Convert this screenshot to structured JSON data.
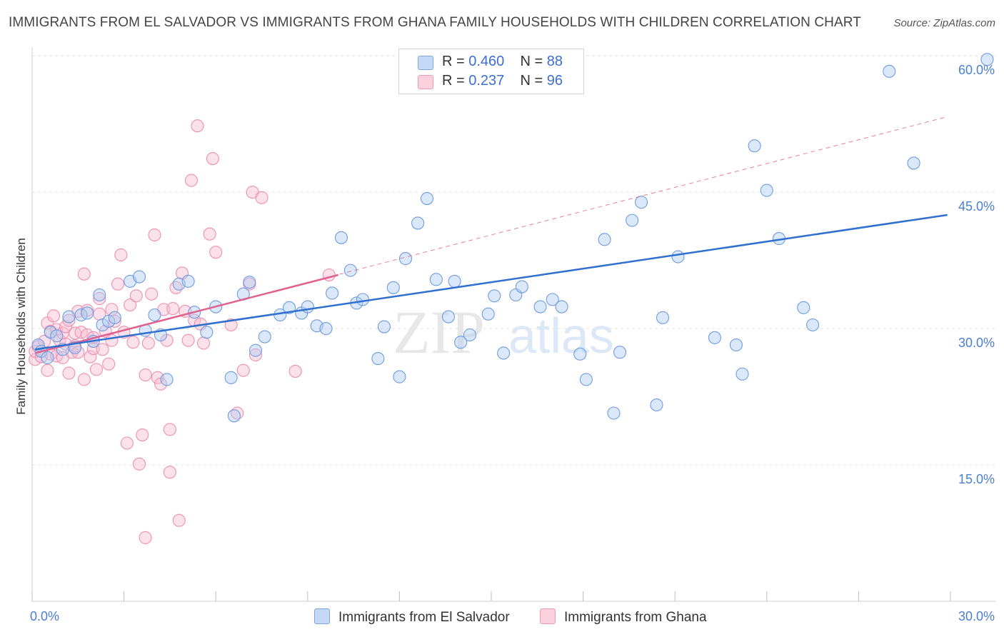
{
  "title": "IMMIGRANTS FROM EL SALVADOR VS IMMIGRANTS FROM GHANA FAMILY HOUSEHOLDS WITH CHILDREN CORRELATION CHART",
  "source": "Source: ZipAtlas.com",
  "watermark": {
    "zip": "ZIP",
    "atlas": "atlas"
  },
  "legend": {
    "rows": [
      {
        "r_label": "R =",
        "r_value": "0.460",
        "n_label": "N =",
        "n_value": "88"
      },
      {
        "r_label": "R =",
        "r_value": "0.237",
        "n_label": "N =",
        "n_value": "96"
      }
    ]
  },
  "colors": {
    "blue": "#4a7fd1",
    "blue_fill": "#aecbf2",
    "blue_line": "#2f6fd0",
    "pink": "#e0608e",
    "pink_fill": "#f7bdd0",
    "pink_line": "#e0608e"
  },
  "chart_data": {
    "type": "scatter",
    "title": "IMMIGRANTS FROM EL SALVADOR VS IMMIGRANTS FROM GHANA FAMILY HOUSEHOLDS WITH CHILDREN CORRELATION CHART",
    "xlabel": "",
    "ylabel": "Family Households with Children",
    "xlim": [
      0,
      30
    ],
    "ylim": [
      0,
      60
    ],
    "x_tick_labels": [
      "0.0%",
      "30.0%"
    ],
    "y_tick_labels": [
      "15.0%",
      "30.0%",
      "45.0%",
      "60.0%"
    ],
    "y_ticks": [
      15,
      30,
      45,
      60
    ],
    "grid": true,
    "series": [
      {
        "name": "Immigrants from El Salvador",
        "color": "blue",
        "trend": {
          "x": [
            0.1,
            29.9
          ],
          "y": [
            27.7,
            42.5
          ]
        },
        "points": [
          [
            0.2,
            28.2
          ],
          [
            0.3,
            27.5
          ],
          [
            0.5,
            26.8
          ],
          [
            0.6,
            29.6
          ],
          [
            0.8,
            29.2
          ],
          [
            1.0,
            27.7
          ],
          [
            1.2,
            31.3
          ],
          [
            1.4,
            27.9
          ],
          [
            1.6,
            31.5
          ],
          [
            1.8,
            31.7
          ],
          [
            2.0,
            28.6
          ],
          [
            2.2,
            33.7
          ],
          [
            2.3,
            30.4
          ],
          [
            2.5,
            30.8
          ],
          [
            2.7,
            31.2
          ],
          [
            3.2,
            35.2
          ],
          [
            3.5,
            35.7
          ],
          [
            3.7,
            29.8
          ],
          [
            4.0,
            31.5
          ],
          [
            4.2,
            29.3
          ],
          [
            4.4,
            24.4
          ],
          [
            4.8,
            34.9
          ],
          [
            5.1,
            35.2
          ],
          [
            5.3,
            31.8
          ],
          [
            5.7,
            29.6
          ],
          [
            6.0,
            32.4
          ],
          [
            6.5,
            24.6
          ],
          [
            6.6,
            20.4
          ],
          [
            6.9,
            33.8
          ],
          [
            7.1,
            35.1
          ],
          [
            7.3,
            27.6
          ],
          [
            7.6,
            29.1
          ],
          [
            8.1,
            31.5
          ],
          [
            8.4,
            32.3
          ],
          [
            8.8,
            31.7
          ],
          [
            9.0,
            32.4
          ],
          [
            9.3,
            30.3
          ],
          [
            9.6,
            30.0
          ],
          [
            9.8,
            33.9
          ],
          [
            10.1,
            40.0
          ],
          [
            10.4,
            36.4
          ],
          [
            10.6,
            32.8
          ],
          [
            10.8,
            33.2
          ],
          [
            11.3,
            26.7
          ],
          [
            11.5,
            30.2
          ],
          [
            11.8,
            34.5
          ],
          [
            12.0,
            24.7
          ],
          [
            12.2,
            37.7
          ],
          [
            12.6,
            41.6
          ],
          [
            12.9,
            44.3
          ],
          [
            13.2,
            35.4
          ],
          [
            13.6,
            31.3
          ],
          [
            13.8,
            35.2
          ],
          [
            14.0,
            28.5
          ],
          [
            14.3,
            29.3
          ],
          [
            14.9,
            31.6
          ],
          [
            15.1,
            33.6
          ],
          [
            15.4,
            27.3
          ],
          [
            15.8,
            33.7
          ],
          [
            16.0,
            34.6
          ],
          [
            16.6,
            32.4
          ],
          [
            17.0,
            33.2
          ],
          [
            17.3,
            32.4
          ],
          [
            17.9,
            27.2
          ],
          [
            18.1,
            24.4
          ],
          [
            18.7,
            39.8
          ],
          [
            19.0,
            20.7
          ],
          [
            19.2,
            27.4
          ],
          [
            19.6,
            41.9
          ],
          [
            19.9,
            43.9
          ],
          [
            20.4,
            21.6
          ],
          [
            20.6,
            31.2
          ],
          [
            21.1,
            37.9
          ],
          [
            22.3,
            29.0
          ],
          [
            23.0,
            28.2
          ],
          [
            23.2,
            25.0
          ],
          [
            23.6,
            50.1
          ],
          [
            24.0,
            45.2
          ],
          [
            24.4,
            39.9
          ],
          [
            25.2,
            32.3
          ],
          [
            25.5,
            30.4
          ],
          [
            28.0,
            58.3
          ],
          [
            28.8,
            48.2
          ],
          [
            31.2,
            59.6
          ]
        ]
      },
      {
        "name": "Immigrants from Ghana",
        "color": "pink",
        "trend": {
          "x": [
            0.1,
            10.0
          ],
          "y": [
            27.3,
            35.9
          ]
        },
        "dashed_trend": {
          "x": [
            0.1,
            29.9
          ],
          "y": [
            27.3,
            53.3
          ]
        },
        "points": [
          [
            0.1,
            26.6
          ],
          [
            0.1,
            27.5
          ],
          [
            0.2,
            28.0
          ],
          [
            0.3,
            26.9
          ],
          [
            0.4,
            28.6
          ],
          [
            0.5,
            25.4
          ],
          [
            0.5,
            30.6
          ],
          [
            0.6,
            27.2
          ],
          [
            0.6,
            29.7
          ],
          [
            0.7,
            31.4
          ],
          [
            0.8,
            27.0
          ],
          [
            0.8,
            29.9
          ],
          [
            0.9,
            28.7
          ],
          [
            1.0,
            29.5
          ],
          [
            1.0,
            26.8
          ],
          [
            1.1,
            30.2
          ],
          [
            1.1,
            28.3
          ],
          [
            1.2,
            25.1
          ],
          [
            1.2,
            30.9
          ],
          [
            1.3,
            27.4
          ],
          [
            1.4,
            29.5
          ],
          [
            1.4,
            28.1
          ],
          [
            1.5,
            31.9
          ],
          [
            1.5,
            27.4
          ],
          [
            1.6,
            29.6
          ],
          [
            1.7,
            24.4
          ],
          [
            1.7,
            36.0
          ],
          [
            1.8,
            29.3
          ],
          [
            1.8,
            32.0
          ],
          [
            1.9,
            26.9
          ],
          [
            2.0,
            27.8
          ],
          [
            2.0,
            29.0
          ],
          [
            2.1,
            25.5
          ],
          [
            2.2,
            33.3
          ],
          [
            2.2,
            31.6
          ],
          [
            2.3,
            27.7
          ],
          [
            2.4,
            29.7
          ],
          [
            2.5,
            26.1
          ],
          [
            2.6,
            28.7
          ],
          [
            2.6,
            32.1
          ],
          [
            2.7,
            30.8
          ],
          [
            2.8,
            34.9
          ],
          [
            2.9,
            38.1
          ],
          [
            3.0,
            29.6
          ],
          [
            3.1,
            17.4
          ],
          [
            3.2,
            32.6
          ],
          [
            3.3,
            28.5
          ],
          [
            3.4,
            33.6
          ],
          [
            3.5,
            15.1
          ],
          [
            3.6,
            18.3
          ],
          [
            3.7,
            24.9
          ],
          [
            3.8,
            28.4
          ],
          [
            3.9,
            33.8
          ],
          [
            4.0,
            40.3
          ],
          [
            4.1,
            24.6
          ],
          [
            4.2,
            23.9
          ],
          [
            4.3,
            32.1
          ],
          [
            4.4,
            28.7
          ],
          [
            4.5,
            14.2
          ],
          [
            4.5,
            18.9
          ],
          [
            4.6,
            32.2
          ],
          [
            4.7,
            34.5
          ],
          [
            4.8,
            8.9
          ],
          [
            4.9,
            36.1
          ],
          [
            5.0,
            31.9
          ],
          [
            5.1,
            28.7
          ],
          [
            5.2,
            46.3
          ],
          [
            5.3,
            30.9
          ],
          [
            5.4,
            52.3
          ],
          [
            5.5,
            30.5
          ],
          [
            5.6,
            28.4
          ],
          [
            5.8,
            40.4
          ],
          [
            5.9,
            48.7
          ],
          [
            6.0,
            38.4
          ],
          [
            6.5,
            30.4
          ],
          [
            6.7,
            20.7
          ],
          [
            6.9,
            25.4
          ],
          [
            7.1,
            34.9
          ],
          [
            7.2,
            45.0
          ],
          [
            7.3,
            27.1
          ],
          [
            7.5,
            44.4
          ],
          [
            8.6,
            25.3
          ],
          [
            9.7,
            35.9
          ],
          [
            3.7,
            7.0
          ]
        ]
      }
    ]
  },
  "bottom_legend": [
    {
      "label": "Immigrants from El Salvador"
    },
    {
      "label": "Immigrants from Ghana"
    }
  ]
}
